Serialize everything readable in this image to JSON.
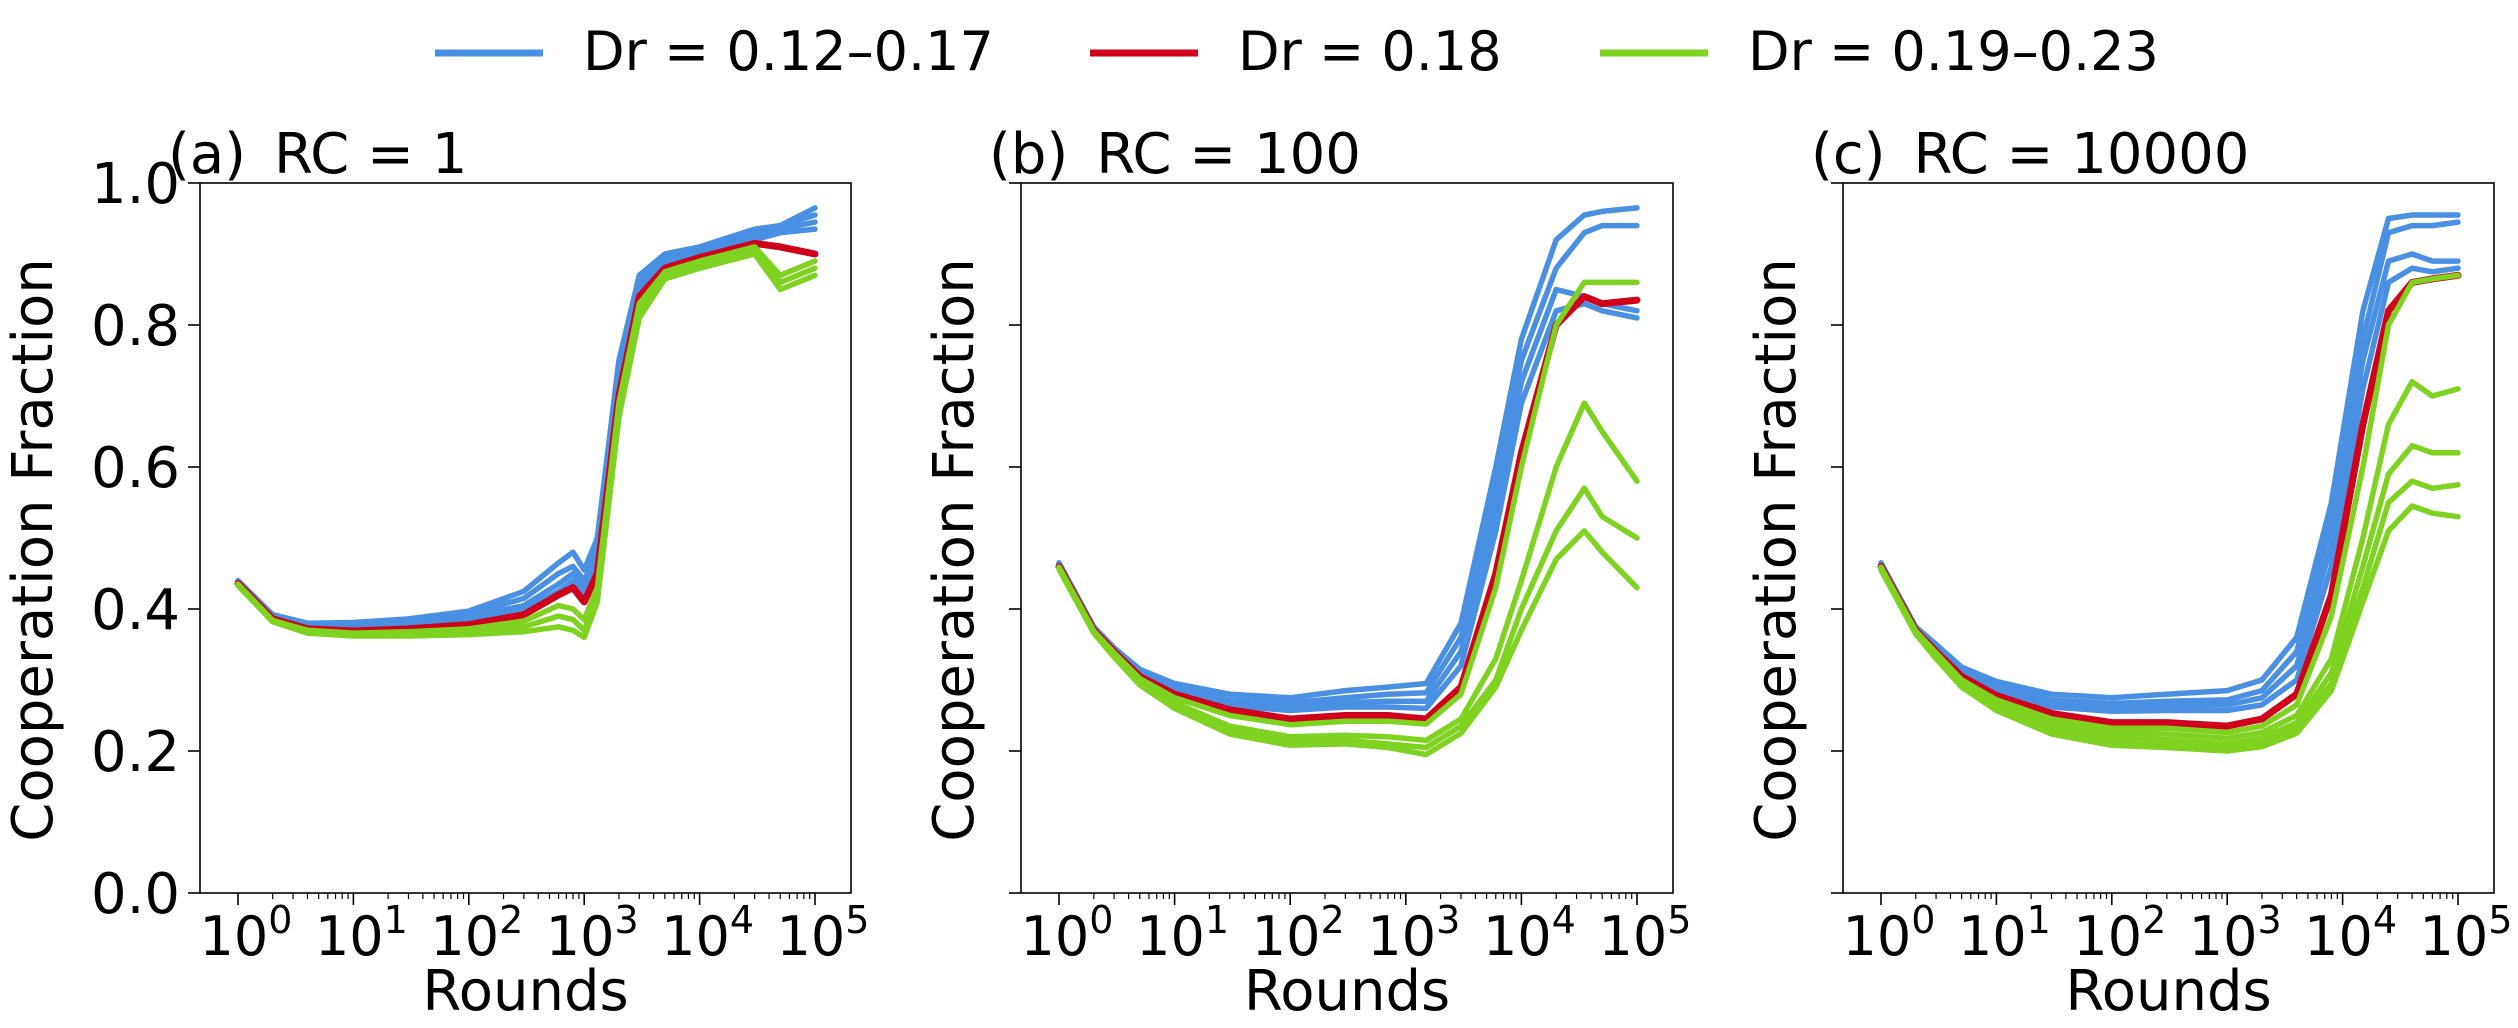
{
  "chart_data": [
    {
      "type": "line",
      "panel_label": "(a)",
      "title": "RC = 1",
      "xlabel": "Rounds",
      "ylabel": "Cooperation Fraction",
      "xscale": "log",
      "xlim": [
        1,
        100000
      ],
      "ylim": [
        0,
        1
      ],
      "yticks_shown": true,
      "xtick_labels": [
        "10",
        "10",
        "10",
        "10",
        "10",
        "10"
      ],
      "xtick_exponents": [
        "0",
        "1",
        "2",
        "3",
        "4",
        "5"
      ],
      "ytick_labels": [
        "0.0",
        "0.2",
        "0.4",
        "0.6",
        "0.8",
        "1.0"
      ],
      "grid": false,
      "x": [
        1,
        2,
        4,
        10,
        30,
        100,
        300,
        600,
        800,
        1000,
        1300,
        2000,
        3000,
        5000,
        10000,
        30000,
        50000,
        100000
      ],
      "series": [
        {
          "group": "blue",
          "values": [
            0.44,
            0.392,
            0.38,
            0.381,
            0.386,
            0.397,
            0.425,
            0.465,
            0.48,
            0.455,
            0.5,
            0.75,
            0.87,
            0.9,
            0.91,
            0.935,
            0.94,
            0.965
          ]
        },
        {
          "group": "blue",
          "values": [
            0.438,
            0.39,
            0.378,
            0.378,
            0.383,
            0.393,
            0.415,
            0.45,
            0.46,
            0.44,
            0.48,
            0.74,
            0.86,
            0.895,
            0.905,
            0.93,
            0.94,
            0.955
          ]
        },
        {
          "group": "blue",
          "values": [
            0.437,
            0.388,
            0.376,
            0.376,
            0.38,
            0.388,
            0.405,
            0.435,
            0.45,
            0.43,
            0.47,
            0.73,
            0.85,
            0.89,
            0.9,
            0.925,
            0.935,
            0.945
          ]
        },
        {
          "group": "blue",
          "values": [
            0.436,
            0.386,
            0.374,
            0.374,
            0.378,
            0.384,
            0.398,
            0.425,
            0.44,
            0.42,
            0.46,
            0.72,
            0.845,
            0.885,
            0.9,
            0.92,
            0.93,
            0.935
          ]
        },
        {
          "group": "red",
          "values": [
            0.436,
            0.386,
            0.372,
            0.369,
            0.372,
            0.378,
            0.392,
            0.42,
            0.43,
            0.41,
            0.45,
            0.7,
            0.84,
            0.88,
            0.895,
            0.915,
            0.91,
            0.9
          ]
        },
        {
          "group": "green",
          "values": [
            0.435,
            0.384,
            0.37,
            0.366,
            0.368,
            0.372,
            0.383,
            0.405,
            0.4,
            0.385,
            0.43,
            0.69,
            0.83,
            0.875,
            0.89,
            0.91,
            0.87,
            0.89
          ]
        },
        {
          "group": "green",
          "values": [
            0.434,
            0.383,
            0.368,
            0.364,
            0.365,
            0.368,
            0.375,
            0.39,
            0.385,
            0.37,
            0.42,
            0.68,
            0.82,
            0.87,
            0.885,
            0.905,
            0.86,
            0.88
          ]
        },
        {
          "group": "green",
          "values": [
            0.433,
            0.382,
            0.366,
            0.362,
            0.362,
            0.364,
            0.368,
            0.375,
            0.37,
            0.36,
            0.41,
            0.67,
            0.81,
            0.865,
            0.88,
            0.9,
            0.85,
            0.87
          ]
        }
      ]
    },
    {
      "type": "line",
      "panel_label": "(b)",
      "title": "RC = 100",
      "xlabel": "Rounds",
      "ylabel": "Cooperation Fraction",
      "xscale": "log",
      "xlim": [
        1,
        100000
      ],
      "ylim": [
        0,
        1
      ],
      "yticks_shown": false,
      "xtick_labels": [
        "10",
        "10",
        "10",
        "10",
        "10",
        "10"
      ],
      "xtick_exponents": [
        "0",
        "1",
        "2",
        "3",
        "4",
        "5"
      ],
      "grid": false,
      "x": [
        1,
        2,
        3,
        5,
        10,
        30,
        100,
        300,
        700,
        1500,
        3000,
        6000,
        10000,
        20000,
        35000,
        50000,
        100000
      ],
      "series": [
        {
          "group": "blue",
          "values": [
            0.465,
            0.375,
            0.345,
            0.315,
            0.295,
            0.28,
            0.275,
            0.285,
            0.29,
            0.295,
            0.38,
            0.6,
            0.78,
            0.92,
            0.955,
            0.96,
            0.965
          ]
        },
        {
          "group": "blue",
          "values": [
            0.463,
            0.373,
            0.343,
            0.312,
            0.29,
            0.272,
            0.268,
            0.275,
            0.28,
            0.282,
            0.36,
            0.57,
            0.75,
            0.88,
            0.93,
            0.94,
            0.94
          ]
        },
        {
          "group": "blue",
          "values": [
            0.462,
            0.372,
            0.342,
            0.31,
            0.287,
            0.268,
            0.262,
            0.268,
            0.27,
            0.27,
            0.34,
            0.54,
            0.72,
            0.85,
            0.84,
            0.83,
            0.82
          ]
        },
        {
          "group": "blue",
          "values": [
            0.461,
            0.371,
            0.341,
            0.308,
            0.284,
            0.264,
            0.257,
            0.262,
            0.262,
            0.26,
            0.32,
            0.51,
            0.69,
            0.82,
            0.83,
            0.82,
            0.81
          ]
        },
        {
          "group": "red",
          "values": [
            0.46,
            0.37,
            0.34,
            0.305,
            0.28,
            0.258,
            0.245,
            0.25,
            0.25,
            0.245,
            0.29,
            0.45,
            0.62,
            0.8,
            0.84,
            0.83,
            0.835
          ]
        },
        {
          "group": "green",
          "values": [
            0.459,
            0.369,
            0.338,
            0.302,
            0.275,
            0.25,
            0.237,
            0.242,
            0.242,
            0.238,
            0.28,
            0.43,
            0.6,
            0.8,
            0.86,
            0.86,
            0.86
          ]
        },
        {
          "group": "green",
          "values": [
            0.458,
            0.368,
            0.335,
            0.298,
            0.268,
            0.235,
            0.22,
            0.222,
            0.22,
            0.215,
            0.245,
            0.33,
            0.44,
            0.6,
            0.69,
            0.65,
            0.58
          ]
        },
        {
          "group": "green",
          "values": [
            0.457,
            0.367,
            0.333,
            0.295,
            0.263,
            0.228,
            0.213,
            0.215,
            0.21,
            0.205,
            0.235,
            0.3,
            0.4,
            0.51,
            0.57,
            0.53,
            0.5
          ]
        },
        {
          "group": "green",
          "values": [
            0.456,
            0.366,
            0.332,
            0.293,
            0.26,
            0.224,
            0.208,
            0.21,
            0.205,
            0.195,
            0.225,
            0.29,
            0.37,
            0.47,
            0.51,
            0.48,
            0.43
          ]
        }
      ]
    },
    {
      "type": "line",
      "panel_label": "(c)",
      "title": "RC = 10000",
      "xlabel": "Rounds",
      "ylabel": "Cooperation Fraction",
      "xscale": "log",
      "xlim": [
        1,
        100000
      ],
      "ylim": [
        0,
        1
      ],
      "yticks_shown": false,
      "xtick_labels": [
        "10",
        "10",
        "10",
        "10",
        "10",
        "10"
      ],
      "xtick_exponents": [
        "0",
        "1",
        "2",
        "3",
        "4",
        "5"
      ],
      "grid": false,
      "x": [
        1,
        2,
        3,
        5,
        10,
        30,
        100,
        300,
        1000,
        2000,
        4000,
        8000,
        15000,
        25000,
        40000,
        60000,
        100000
      ],
      "series": [
        {
          "group": "blue",
          "values": [
            0.465,
            0.375,
            0.35,
            0.318,
            0.298,
            0.28,
            0.275,
            0.28,
            0.285,
            0.3,
            0.36,
            0.55,
            0.82,
            0.95,
            0.955,
            0.955,
            0.955
          ]
        },
        {
          "group": "blue",
          "values": [
            0.463,
            0.373,
            0.347,
            0.314,
            0.292,
            0.272,
            0.267,
            0.27,
            0.272,
            0.285,
            0.34,
            0.52,
            0.78,
            0.93,
            0.94,
            0.94,
            0.945
          ]
        },
        {
          "group": "blue",
          "values": [
            0.462,
            0.372,
            0.345,
            0.311,
            0.288,
            0.267,
            0.262,
            0.264,
            0.265,
            0.275,
            0.32,
            0.49,
            0.75,
            0.89,
            0.9,
            0.89,
            0.89
          ]
        },
        {
          "group": "blue",
          "values": [
            0.461,
            0.371,
            0.343,
            0.308,
            0.284,
            0.262,
            0.256,
            0.257,
            0.257,
            0.265,
            0.3,
            0.46,
            0.71,
            0.86,
            0.88,
            0.875,
            0.88
          ]
        },
        {
          "group": "red",
          "values": [
            0.46,
            0.37,
            0.34,
            0.305,
            0.278,
            0.253,
            0.24,
            0.24,
            0.235,
            0.245,
            0.28,
            0.42,
            0.66,
            0.82,
            0.86,
            0.865,
            0.87
          ]
        },
        {
          "group": "green",
          "values": [
            0.459,
            0.369,
            0.338,
            0.3,
            0.272,
            0.245,
            0.232,
            0.232,
            0.226,
            0.235,
            0.265,
            0.39,
            0.6,
            0.8,
            0.86,
            0.865,
            0.87
          ]
        },
        {
          "group": "green",
          "values": [
            0.458,
            0.368,
            0.336,
            0.297,
            0.267,
            0.238,
            0.225,
            0.224,
            0.218,
            0.226,
            0.25,
            0.33,
            0.5,
            0.66,
            0.72,
            0.7,
            0.71
          ]
        },
        {
          "group": "green",
          "values": [
            0.457,
            0.367,
            0.334,
            0.294,
            0.263,
            0.232,
            0.218,
            0.216,
            0.21,
            0.218,
            0.24,
            0.31,
            0.46,
            0.59,
            0.63,
            0.62,
            0.62
          ]
        },
        {
          "group": "green",
          "values": [
            0.456,
            0.366,
            0.332,
            0.292,
            0.26,
            0.228,
            0.213,
            0.21,
            0.205,
            0.212,
            0.232,
            0.295,
            0.43,
            0.55,
            0.58,
            0.57,
            0.575
          ]
        },
        {
          "group": "green",
          "values": [
            0.455,
            0.365,
            0.33,
            0.29,
            0.257,
            0.224,
            0.208,
            0.205,
            0.2,
            0.206,
            0.225,
            0.285,
            0.41,
            0.51,
            0.545,
            0.535,
            0.53
          ]
        }
      ]
    }
  ],
  "legend": {
    "placement": "top-center",
    "entries": [
      {
        "group": "blue",
        "label": "Dr = 0.12–0.17",
        "color": "#4a90e2"
      },
      {
        "group": "red",
        "label": "Dr = 0.18",
        "color": "#d0021b"
      },
      {
        "group": "green",
        "label": "Dr = 0.19–0.23",
        "color": "#7ed321"
      }
    ]
  }
}
